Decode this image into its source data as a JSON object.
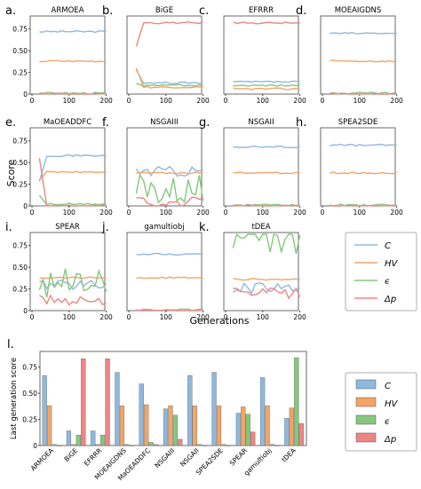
{
  "colors": {
    "C": "#8fb8df",
    "HV": "#f3a566",
    "eps": "#86c77d",
    "dp": "#ee8585"
  },
  "chart_data": [
    {
      "type": "line",
      "panels": [
        {
          "letter": "a.",
          "title": "ARMOEA",
          "C": 0.72,
          "HV": 0.38,
          "eps": 0.01,
          "dp": 0.0,
          "noisy": false
        },
        {
          "letter": "b.",
          "title": "BiGE",
          "C": 0.13,
          "HV": 0.08,
          "eps": 0.1,
          "dp": 0.82,
          "noisy": false
        },
        {
          "letter": "c.",
          "title": "EFRRR",
          "C": 0.14,
          "HV": 0.06,
          "eps": 0.1,
          "dp": 0.82,
          "noisy": false
        },
        {
          "letter": "d.",
          "title": "MOEAIGDNS",
          "C": 0.7,
          "HV": 0.38,
          "eps": 0.01,
          "dp": 0.0,
          "noisy": false
        },
        {
          "letter": "e.",
          "title": "MaOEADDFC",
          "C": 0.58,
          "HV": 0.39,
          "eps": 0.02,
          "dp": 0.0,
          "noisy": false
        },
        {
          "letter": "f.",
          "title": "NSGAIII",
          "C": 0.4,
          "HV": 0.38,
          "eps": 0.2,
          "dp": 0.04,
          "noisy": true
        },
        {
          "letter": "g.",
          "title": "NSGAII",
          "C": 0.68,
          "HV": 0.38,
          "eps": 0.01,
          "dp": 0.0,
          "noisy": false
        },
        {
          "letter": "h.",
          "title": "SPEA2SDE",
          "C": 0.7,
          "HV": 0.38,
          "eps": 0.01,
          "dp": 0.0,
          "noisy": false
        },
        {
          "letter": "i.",
          "title": "SPEAR",
          "C": 0.3,
          "HV": 0.38,
          "eps": 0.32,
          "dp": 0.12,
          "noisy": true
        },
        {
          "letter": "j.",
          "title": "gamultiobj",
          "C": 0.65,
          "HV": 0.38,
          "eps": 0.01,
          "dp": 0.0,
          "noisy": false
        },
        {
          "letter": "k.",
          "title": "tDEA",
          "C": 0.26,
          "HV": 0.36,
          "eps": 0.82,
          "dp": 0.2,
          "noisy": true
        }
      ],
      "xlim": [
        0,
        200
      ],
      "xticks": [
        "0",
        "100",
        "200"
      ],
      "ylim": [
        0,
        0.9
      ],
      "yticks": [
        "0",
        "0.25",
        "0.50",
        "0.75"
      ],
      "ylabel": "Score",
      "xlabel": "Generations",
      "legend": [
        "C",
        "HV",
        "ϵ",
        "Δp"
      ]
    },
    {
      "type": "bar",
      "letter": "l.",
      "ylabel": "Last generation score",
      "categories": [
        "ARMOEA",
        "BiGE",
        "EFRRR",
        "MOEAIGDNS",
        "MaOEADDFC",
        "NSGAIII",
        "NSGAII",
        "SPEA2SDE",
        "SPEAR",
        "gamultiobj",
        "tDEA"
      ],
      "series": [
        {
          "name": "C",
          "values": [
            0.67,
            0.14,
            0.14,
            0.7,
            0.59,
            0.35,
            0.67,
            0.7,
            0.31,
            0.65,
            0.26
          ]
        },
        {
          "name": "HV",
          "values": [
            0.38,
            0.01,
            0.01,
            0.38,
            0.39,
            0.38,
            0.38,
            0.38,
            0.37,
            0.38,
            0.36
          ]
        },
        {
          "name": "ϵ",
          "values": [
            0.01,
            0.1,
            0.1,
            0.01,
            0.03,
            0.29,
            0.01,
            0.01,
            0.3,
            0.01,
            0.84
          ]
        },
        {
          "name": "Δp",
          "values": [
            0.0,
            0.83,
            0.83,
            0.0,
            0.01,
            0.06,
            0.0,
            0.0,
            0.13,
            0.0,
            0.21
          ]
        }
      ],
      "ylim": [
        0,
        0.9
      ],
      "yticks": [
        "0",
        "0.25",
        "0.50",
        "0.75"
      ]
    }
  ]
}
